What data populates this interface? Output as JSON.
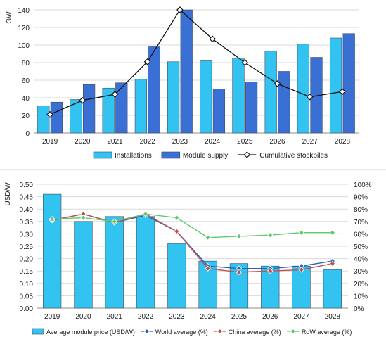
{
  "chart_data": [
    {
      "type": "bar",
      "title": "",
      "xlabel": "",
      "ylabel": "GW",
      "ylim": [
        0,
        140
      ],
      "yticks": [
        "0",
        "20",
        "40",
        "60",
        "80",
        "100",
        "120",
        "140"
      ],
      "grid": "horizontal",
      "legend_position": "bottom",
      "categories": [
        "2019",
        "2020",
        "2021",
        "2022",
        "2023",
        "2024",
        "2025",
        "2026",
        "2027",
        "2028"
      ],
      "series": [
        {
          "name": "Installations",
          "kind": "bar",
          "color": "#33c3f0",
          "values": [
            31,
            38,
            51,
            61,
            81,
            82,
            85,
            93,
            101,
            108
          ]
        },
        {
          "name": "Module supply",
          "kind": "bar",
          "color": "#3a6fd4",
          "values": [
            35,
            55,
            57,
            98,
            140,
            50,
            58,
            70,
            86,
            113
          ]
        },
        {
          "name": "Cumulative stockpiles",
          "kind": "line",
          "color": "#111111",
          "marker": "diamond",
          "values": [
            21,
            37,
            44,
            81,
            140,
            107,
            80,
            56,
            41,
            47
          ]
        }
      ]
    },
    {
      "type": "bar",
      "title": "",
      "xlabel": "",
      "ylabel": "USD/W",
      "ylim": [
        0,
        0.5
      ],
      "yticks": [
        "0.00",
        "0.05",
        "0.10",
        "0.15",
        "0.20",
        "0.25",
        "0.30",
        "0.35",
        "0.40",
        "0.45",
        "0.50"
      ],
      "y2lim": [
        0,
        100
      ],
      "y2ticks": [
        "0%",
        "10%",
        "20%",
        "30%",
        "40%",
        "50%",
        "60%",
        "70%",
        "80%",
        "90%",
        "100%"
      ],
      "grid": "horizontal",
      "legend_position": "bottom",
      "categories": [
        "2019",
        "2020",
        "2021",
        "2022",
        "2023",
        "2024",
        "2025",
        "2026",
        "2027",
        "2028"
      ],
      "series": [
        {
          "name": "Average module price (USD/W)",
          "kind": "bar",
          "axis": "left",
          "color": "#33c3f0",
          "values": [
            0.46,
            0.35,
            0.37,
            0.37,
            0.26,
            0.19,
            0.18,
            0.17,
            0.17,
            0.155
          ]
        },
        {
          "name": "World average (%)",
          "kind": "line",
          "axis": "right",
          "color": "#2f5fb5",
          "marker": "diamond",
          "values": [
            71,
            76,
            69,
            75,
            62,
            34,
            32,
            32,
            34,
            38
          ]
        },
        {
          "name": "China average (%)",
          "kind": "line",
          "axis": "right",
          "color": "#c0504d",
          "marker": "diamond",
          "values": [
            71,
            76,
            69,
            76,
            62,
            32,
            29,
            30,
            31,
            36
          ]
        },
        {
          "name": "RoW average (%)",
          "kind": "line",
          "axis": "right",
          "color": "#5fc96b",
          "marker": "diamond",
          "values": [
            72,
            73,
            70,
            76,
            73,
            57,
            58,
            59,
            61,
            61
          ]
        }
      ]
    }
  ]
}
